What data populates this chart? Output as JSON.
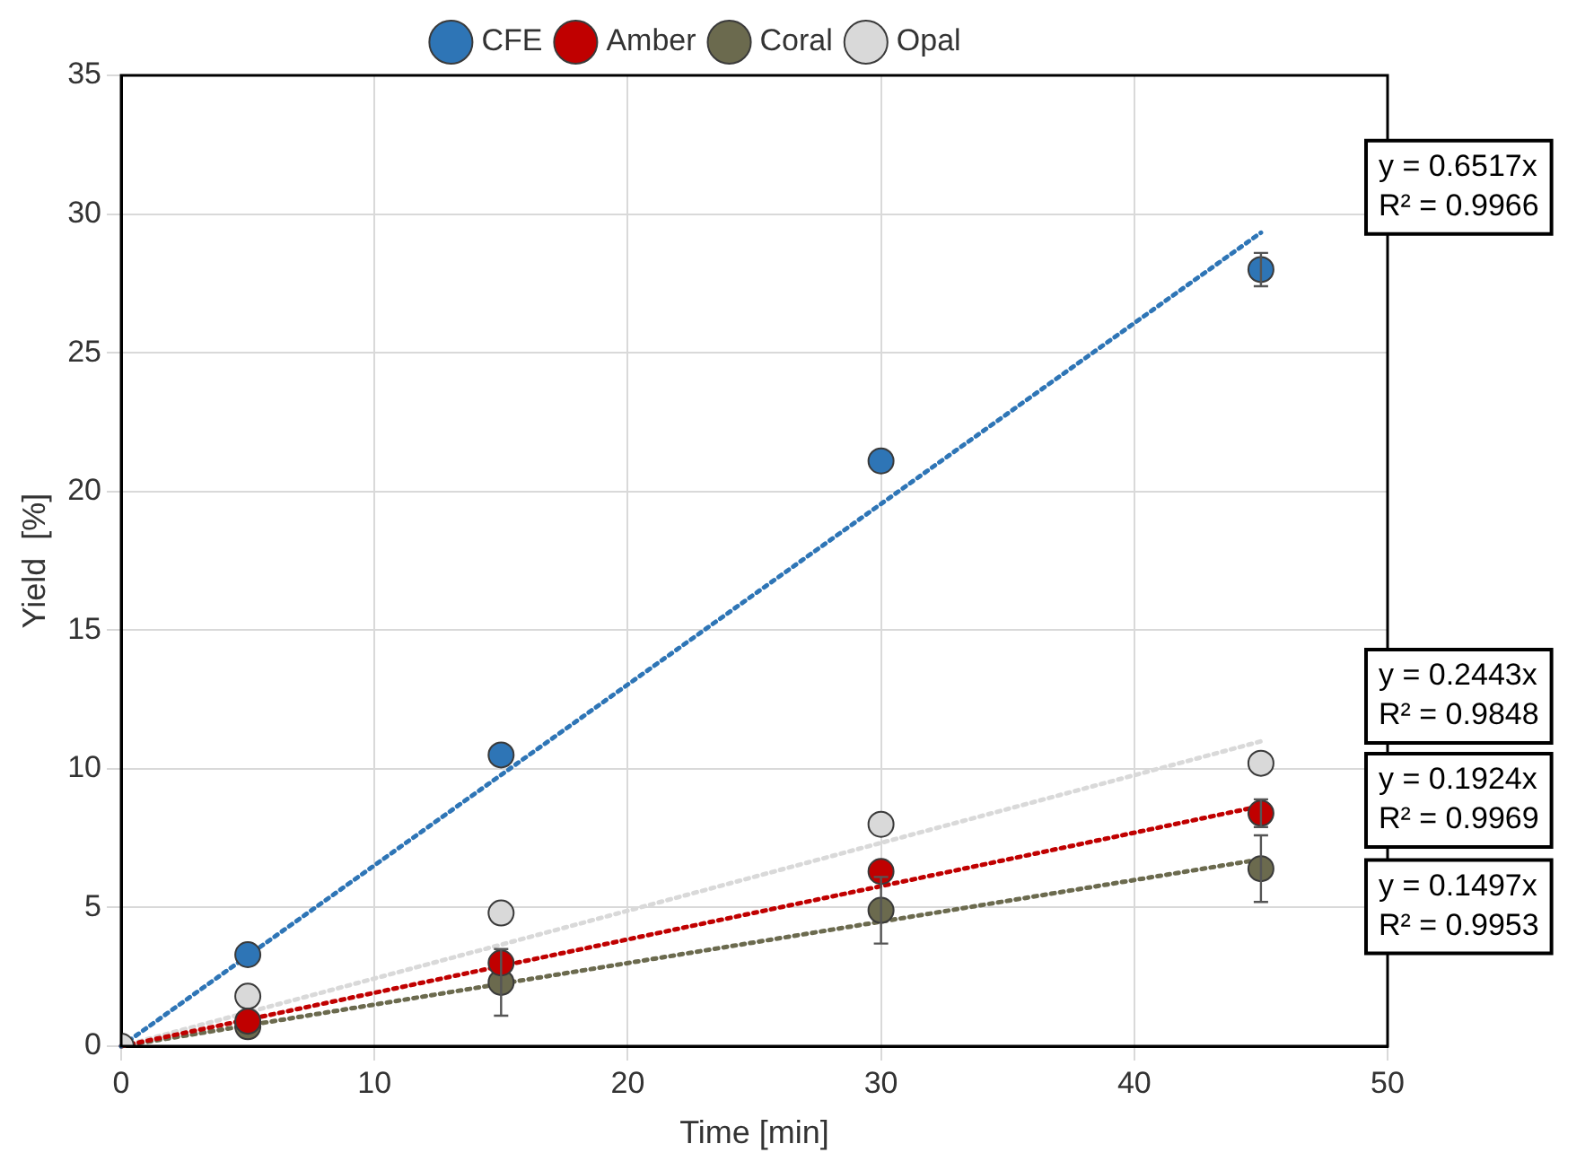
{
  "chart_data": {
    "type": "scatter",
    "xlabel": "Time [min]",
    "ylabel": "Yield  [%]",
    "xlim": [
      0,
      50
    ],
    "xticks": [
      0,
      10,
      20,
      30,
      40,
      50
    ],
    "ylim": [
      0,
      35
    ],
    "yticks": [
      0,
      5,
      10,
      15,
      20,
      25,
      30,
      35
    ],
    "grid": true,
    "legend": "top",
    "marker": "circle",
    "x": [
      0,
      5,
      15,
      30,
      45
    ],
    "series": [
      {
        "name": "CFE",
        "color": "#2e75b6",
        "values": [
          null,
          3.3,
          10.5,
          21.1,
          28.0
        ],
        "errors": [
          null,
          null,
          null,
          null,
          0.6
        ]
      },
      {
        "name": "Amber",
        "color": "#c00000",
        "values": [
          null,
          0.9,
          3.0,
          6.3,
          8.4
        ],
        "errors": [
          null,
          null,
          null,
          null,
          0.5
        ]
      },
      {
        "name": "Coral",
        "color": "#6b6a4e",
        "values": [
          null,
          0.7,
          2.3,
          4.9,
          6.4
        ],
        "errors": [
          null,
          null,
          1.2,
          1.2,
          1.2
        ]
      },
      {
        "name": "Opal",
        "color": "#d9d9d9",
        "values": [
          0,
          1.8,
          4.8,
          8.0,
          10.2
        ],
        "errors": [
          null,
          null,
          null,
          null,
          null
        ]
      },
      {
        "type": "line",
        "color": "#2e75b6",
        "values": [
          0,
          3.26,
          9.78,
          19.55,
          29.33
        ],
        "line_style": "dotted",
        "marker": "none"
      },
      {
        "type": "line",
        "color": "#c00000",
        "values": [
          0,
          0.96,
          2.89,
          5.77,
          8.66
        ],
        "line_style": "dotted",
        "marker": "none"
      },
      {
        "type": "line",
        "color": "#6b6a4e",
        "values": [
          0,
          0.75,
          2.25,
          4.49,
          6.74
        ],
        "line_style": "dotted",
        "marker": "none"
      },
      {
        "type": "line",
        "color": "#d9d9d9",
        "values": [
          0,
          1.22,
          3.66,
          7.33,
          10.99
        ],
        "line_style": "dotted",
        "marker": "none"
      }
    ],
    "annotations": [
      "y = 0.6517x\nR² = 0.9966",
      "y = 0.2443x\nR² = 0.9848",
      "y = 0.1924x\nR² = 0.9969",
      "y = 0.1497x\nR² = 0.9953"
    ]
  }
}
